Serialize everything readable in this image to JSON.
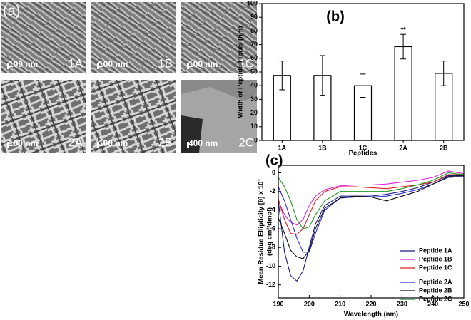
{
  "panel_a": {
    "label": "(a)",
    "images": [
      {
        "label": "1A",
        "scale": "100 nm"
      },
      {
        "label": "1B",
        "scale": "100 nm"
      },
      {
        "label": "1C",
        "scale": "100 nm"
      },
      {
        "label": "2A",
        "scale": "100 nm"
      },
      {
        "label": "2B",
        "scale": "100 nm"
      },
      {
        "label": "2C",
        "scale": "400 nm"
      }
    ]
  },
  "chart_data": [
    {
      "type": "bar",
      "title": "(b)",
      "ylabel": "Width of Peptide Fibrils (nm)",
      "xlabel": "Peptides",
      "categories": [
        "1A",
        "1B",
        "1C",
        "2A",
        "2B"
      ],
      "values": [
        47.5,
        47.5,
        40,
        68.5,
        49
      ],
      "errors": [
        10.5,
        14.5,
        8.5,
        9,
        9
      ],
      "color": "#ffffff",
      "ylim": [
        0,
        100
      ],
      "yticks": [
        0,
        10,
        20,
        30,
        40,
        50,
        60,
        70,
        80,
        90,
        100
      ],
      "annotations": [
        {
          "text": "**",
          "category": "2A"
        }
      ]
    },
    {
      "type": "line",
      "title": "(c)",
      "ylabel": "Mean Residue Ellipticity [θ] x 10³",
      "ylabel2": "(deg cm²/dmol)",
      "xlabel": "Wavelength (nm)",
      "x": [
        190,
        192,
        194,
        196,
        198,
        200,
        202,
        205,
        210,
        215,
        220,
        225,
        230,
        235,
        240,
        245,
        250
      ],
      "xlim": [
        190,
        250
      ],
      "xticks": [
        190,
        200,
        210,
        220,
        230,
        240,
        250
      ],
      "ylim": [
        -13.4,
        0.8
      ],
      "yticks": [
        0,
        -2,
        -4,
        -6,
        -8,
        -10,
        -12
      ],
      "legend": "lower right",
      "series": [
        {
          "name": "Peptide 1A",
          "color": "#1a1a8c",
          "values": [
            -3,
            -8.5,
            -11,
            -11.6,
            -10.5,
            -8,
            -5.5,
            -3.5,
            -2.5,
            -2.5,
            -2.5,
            -2.3,
            -2,
            -1.6,
            -1,
            -0.3,
            -0.3
          ]
        },
        {
          "name": "Peptide 1B",
          "color": "#e020e0",
          "values": [
            -3,
            -4.5,
            -5.3,
            -5.6,
            -5,
            -3.5,
            -2.5,
            -1.8,
            -1.4,
            -1.3,
            -1.3,
            -1.2,
            -1,
            -0.8,
            -0.5,
            0.2,
            -0.1
          ]
        },
        {
          "name": "Peptide 1C",
          "color": "#e02020",
          "values": [
            -2.8,
            -5,
            -6.5,
            -6.6,
            -6,
            -4.5,
            -3,
            -2,
            -1.5,
            -1.5,
            -1.6,
            -1.7,
            -1.5,
            -1.3,
            -1,
            -0.2,
            -0.2
          ]
        },
        {
          "name": "Peptide 2A",
          "color": "#2a2ad8",
          "values": [
            -1.5,
            -3,
            -5,
            -7,
            -8.5,
            -8.5,
            -6.5,
            -4,
            -2.7,
            -2.6,
            -2.6,
            -2.5,
            -2.2,
            -1.8,
            -1.2,
            -0.5,
            -0.4
          ]
        },
        {
          "name": "Peptide 2B",
          "color": "#111111",
          "values": [
            -4.8,
            -6.5,
            -8.3,
            -9,
            -9.2,
            -8.3,
            -6,
            -3.8,
            -2.7,
            -2.5,
            -2.6,
            -3,
            -2.5,
            -2,
            -1.2,
            -0.4,
            -0.3
          ]
        },
        {
          "name": "Peptide 2C",
          "color": "#1f9a1f",
          "values": [
            -0.5,
            -1.5,
            -3,
            -5,
            -6,
            -5.8,
            -4.5,
            -3,
            -2,
            -2,
            -2,
            -2,
            -1.7,
            -1.3,
            -0.8,
            0,
            -0.2
          ]
        }
      ]
    }
  ]
}
